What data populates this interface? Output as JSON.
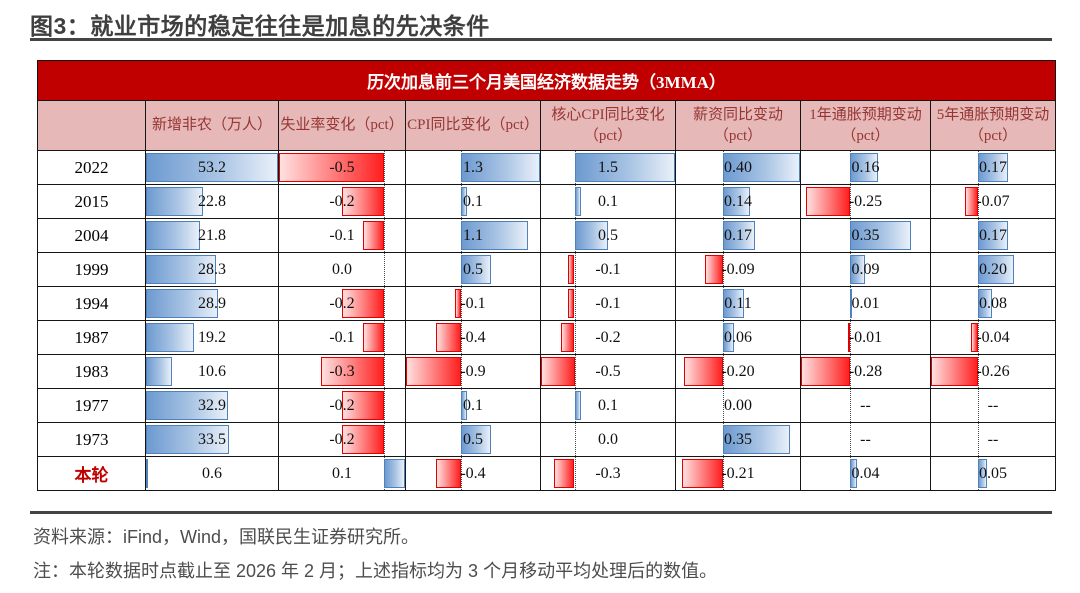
{
  "page": {
    "title": "图3：就业市场的稳定往往是加息的先决条件",
    "source_line": "资料来源：iFind，Wind，国联民生证券研究所。",
    "note_line": "注：本轮数据时点截止至 2026 年 2 月；上述指标均为 3 个月移动平均处理后的数值。"
  },
  "chart_data": {
    "type": "table",
    "title": "历次加息前三个月美国经济数据走势（3MMA）",
    "columns": [
      "",
      "新增非农（万人）",
      "失业率变化（pct）",
      "CPI同比变化（pct）",
      "核心CPI同比变化（pct）",
      "薪资同比变动（pct）",
      "1年通胀预期变动（pct）",
      "5年通胀预期变动（pct）"
    ],
    "rows": [
      {
        "label": "2022",
        "highlight": false,
        "values": [
          "53.2",
          "-0.5",
          "1.3",
          "1.5",
          "0.40",
          "0.16",
          "0.17"
        ]
      },
      {
        "label": "2015",
        "highlight": false,
        "values": [
          "22.8",
          "-0.2",
          "0.1",
          "0.1",
          "0.14",
          "-0.25",
          "-0.07"
        ]
      },
      {
        "label": "2004",
        "highlight": false,
        "values": [
          "21.8",
          "-0.1",
          "1.1",
          "0.5",
          "0.17",
          "0.35",
          "0.17"
        ]
      },
      {
        "label": "1999",
        "highlight": false,
        "values": [
          "28.3",
          "0.0",
          "0.5",
          "-0.1",
          "-0.09",
          "0.09",
          "0.20"
        ]
      },
      {
        "label": "1994",
        "highlight": false,
        "values": [
          "28.9",
          "-0.2",
          "-0.1",
          "-0.1",
          "0.11",
          "0.01",
          "0.08"
        ]
      },
      {
        "label": "1987",
        "highlight": false,
        "values": [
          "19.2",
          "-0.1",
          "-0.4",
          "-0.2",
          "0.06",
          "-0.01",
          "-0.04"
        ]
      },
      {
        "label": "1983",
        "highlight": false,
        "values": [
          "10.6",
          "-0.3",
          "-0.9",
          "-0.5",
          "-0.20",
          "-0.28",
          "-0.26"
        ]
      },
      {
        "label": "1977",
        "highlight": false,
        "values": [
          "32.9",
          "-0.2",
          "0.1",
          "0.1",
          "0.00",
          "--",
          "--"
        ]
      },
      {
        "label": "1973",
        "highlight": false,
        "values": [
          "33.5",
          "-0.2",
          "0.5",
          "0.0",
          "0.35",
          "--",
          "--"
        ]
      },
      {
        "label": "本轮",
        "highlight": true,
        "values": [
          "0.6",
          "0.1",
          "-0.4",
          "-0.3",
          "-0.21",
          "0.04",
          "0.05"
        ]
      }
    ],
    "bar_scales": [
      {
        "min": 0,
        "max": 53.2
      },
      {
        "min": -0.5,
        "max": 0.1
      },
      {
        "min": -0.9,
        "max": 1.3
      },
      {
        "min": -0.5,
        "max": 1.5
      },
      {
        "min": -0.24,
        "max": 0.4
      },
      {
        "min": -0.28,
        "max": 0.46
      },
      {
        "min": -0.26,
        "max": 0.43
      }
    ],
    "colors": {
      "caption_bg": "#C00000",
      "caption_text": "#FFFFFF",
      "colhead_bg": "#E6B8B7",
      "colhead_text": "#963634",
      "positive_bar": "#6D9AD0",
      "positive_bar_border": "#4F81BD",
      "negative_bar": "#FF1F1F",
      "negative_bar_border": "#E00000",
      "highlight_row_text": "#C00000"
    },
    "grid": true,
    "legend_position": "none"
  }
}
